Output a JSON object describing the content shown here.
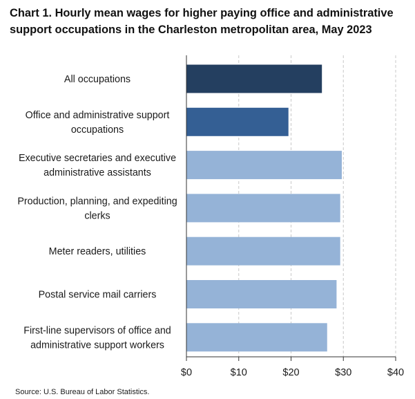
{
  "title": "Chart 1. Hourly mean wages for higher paying office and administrative support occupations in the Charleston metropolitan area, May 2023",
  "source": "Source: U.S. Bureau of Labor Statistics.",
  "colors": {
    "highlight_dark": "#243f60",
    "highlight_mid": "#345f94",
    "default_bar": "#95b3d7",
    "gridline": "#c8c8c8",
    "axis": "#333333"
  },
  "chart_data": {
    "type": "bar",
    "orientation": "horizontal",
    "title": "Chart 1. Hourly mean wages for higher paying office and administrative support occupations in the Charleston metropolitan area, May 2023",
    "xlabel": "",
    "ylabel": "",
    "xlim": [
      0,
      40
    ],
    "ticks": [
      0,
      10,
      20,
      30,
      40
    ],
    "tick_labels": [
      "$0",
      "$10",
      "$20",
      "$30",
      "$40"
    ],
    "grid": "vertical dashed",
    "categories": [
      [
        "All occupations"
      ],
      [
        "Office and administrative support",
        "occupations"
      ],
      [
        "Executive secretaries and executive",
        "administrative assistants"
      ],
      [
        "Production, planning, and expediting",
        "clerks"
      ],
      [
        "Meter readers, utilities"
      ],
      [
        "Postal service mail carriers"
      ],
      [
        "First-line supervisors of office and",
        "administrative support workers"
      ]
    ],
    "values": [
      25.9,
      19.5,
      29.7,
      29.4,
      29.4,
      28.7,
      26.9
    ],
    "bar_colors": [
      "#243f60",
      "#345f94",
      "#95b3d7",
      "#95b3d7",
      "#95b3d7",
      "#95b3d7",
      "#95b3d7"
    ]
  }
}
